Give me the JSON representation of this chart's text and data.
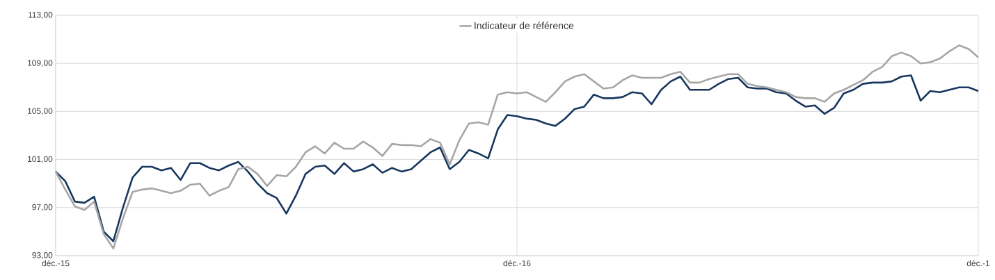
{
  "chart_data": {
    "type": "line",
    "legend": "top",
    "grid": true,
    "line_style": "solid",
    "marker": "none",
    "categories": [
      "déc.-15",
      null,
      null,
      null,
      null,
      null,
      null,
      null,
      null,
      null,
      null,
      null,
      null,
      null,
      null,
      null,
      null,
      null,
      null,
      null,
      null,
      null,
      null,
      null,
      null,
      null,
      null,
      null,
      null,
      null,
      null,
      null,
      null,
      null,
      null,
      null,
      null,
      null,
      null,
      null,
      null,
      null,
      null,
      null,
      null,
      null,
      null,
      null,
      "déc.-16",
      null,
      null,
      null,
      null,
      null,
      null,
      null,
      null,
      null,
      null,
      null,
      null,
      null,
      null,
      null,
      null,
      null,
      null,
      null,
      null,
      null,
      null,
      null,
      null,
      null,
      null,
      null,
      null,
      null,
      null,
      null,
      null,
      null,
      null,
      null,
      null,
      null,
      null,
      null,
      null,
      null,
      null,
      null,
      null,
      null,
      null,
      null,
      "déc.-1"
    ],
    "ylim": [
      93,
      113
    ],
    "yticks": [
      {
        "value": 93,
        "label": "93,00"
      },
      {
        "value": 97,
        "label": "97,00"
      },
      {
        "value": 101,
        "label": "101,00"
      },
      {
        "value": 105,
        "label": "105,00"
      },
      {
        "value": 109,
        "label": "109,00"
      },
      {
        "value": 113,
        "label": "113,00"
      }
    ],
    "series": [
      {
        "color": "#17375e",
        "values": [
          100.0,
          99.2,
          97.5,
          97.4,
          97.9,
          95.0,
          94.2,
          97.0,
          99.5,
          100.4,
          100.4,
          100.1,
          100.3,
          99.3,
          100.7,
          100.7,
          100.3,
          100.1,
          100.5,
          100.8,
          100.0,
          99.0,
          98.2,
          97.8,
          96.5,
          98.0,
          99.8,
          100.4,
          100.5,
          99.8,
          100.7,
          100.0,
          100.2,
          100.6,
          99.9,
          100.3,
          100.0,
          100.2,
          100.9,
          101.6,
          102.0,
          100.2,
          100.8,
          101.8,
          101.5,
          101.1,
          103.5,
          104.7,
          104.6,
          104.4,
          104.3,
          104.0,
          103.8,
          104.4,
          105.2,
          105.4,
          106.4,
          106.1,
          106.1,
          106.2,
          106.6,
          106.5,
          105.6,
          106.8,
          107.5,
          107.9,
          106.8,
          106.8,
          106.8,
          107.3,
          107.7,
          107.8,
          107.0,
          106.9,
          106.9,
          106.6,
          106.5,
          105.9,
          105.4,
          105.5,
          104.8,
          105.3,
          106.5,
          106.8,
          107.3,
          107.4,
          107.4,
          107.5,
          107.9,
          108.0,
          105.9,
          106.7,
          106.6,
          106.8,
          107.0,
          107.0,
          106.7
        ]
      },
      {
        "name": "Indicateur de référence",
        "color": "#a6a6a6",
        "values": [
          100.0,
          98.5,
          97.1,
          96.8,
          97.5,
          94.8,
          93.6,
          96.1,
          98.3,
          98.5,
          98.6,
          98.4,
          98.2,
          98.4,
          98.9,
          99.0,
          98.0,
          98.4,
          98.7,
          100.2,
          100.4,
          99.8,
          98.8,
          99.7,
          99.6,
          100.4,
          101.6,
          102.1,
          101.5,
          102.4,
          101.9,
          101.9,
          102.5,
          102.0,
          101.3,
          102.3,
          102.2,
          102.2,
          102.1,
          102.7,
          102.4,
          100.6,
          102.6,
          104.0,
          104.1,
          103.9,
          106.4,
          106.6,
          106.5,
          106.6,
          106.2,
          105.8,
          106.6,
          107.5,
          107.9,
          108.1,
          107.5,
          106.9,
          107.0,
          107.6,
          108.0,
          107.8,
          107.8,
          107.8,
          108.1,
          108.3,
          107.4,
          107.4,
          107.7,
          107.9,
          108.1,
          108.1,
          107.3,
          107.1,
          107.0,
          106.8,
          106.6,
          106.2,
          106.1,
          106.1,
          105.8,
          106.5,
          106.8,
          107.2,
          107.6,
          108.3,
          108.7,
          109.6,
          109.9,
          109.6,
          109.0,
          109.1,
          109.4,
          110.0,
          110.5,
          110.2,
          109.5
        ]
      }
    ]
  }
}
